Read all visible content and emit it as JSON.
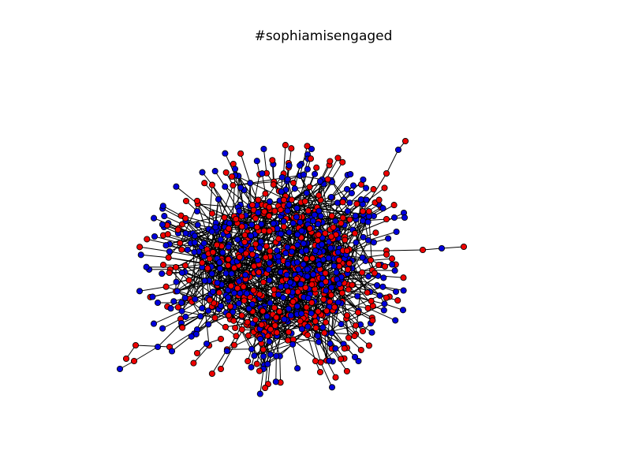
{
  "title": "#sophiamisengaged",
  "colors": {
    "background": "#ffffff",
    "node_red": "#ee0000",
    "node_blue": "#0000dd",
    "node_outline": "#000000",
    "edge": "#000000"
  }
}
